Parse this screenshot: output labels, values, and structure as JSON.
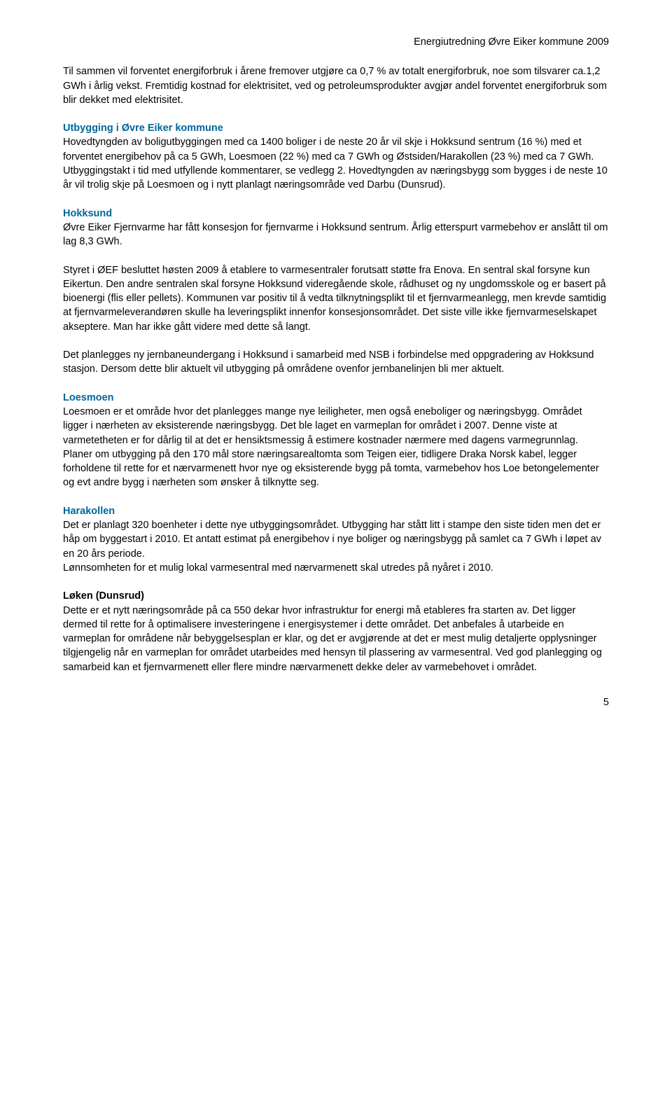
{
  "header": {
    "title": "Energiutredning Øvre Eiker kommune 2009"
  },
  "intro": {
    "p1": "Til sammen vil forventet energiforbruk i årene fremover utgjøre ca 0,7 % av totalt energiforbruk, noe som tilsvarer ca.1,2 GWh i årlig vekst.",
    "p2": "Fremtidig kostnad for elektrisitet, ved og petroleumsprodukter avgjør andel forventet energiforbruk som blir dekket med elektrisitet."
  },
  "utbygging": {
    "heading": "Utbygging i Øvre Eiker kommune",
    "p1": "Hovedtyngden av boligutbyggingen med ca 1400 boliger i de neste 20 år vil skje i Hokksund sentrum (16 %) med et forventet energibehov på ca 5 GWh, Loesmoen (22 %) med ca 7 GWh og Østsiden/Harakollen (23 %) med ca 7 GWh. Utbyggingstakt i tid med utfyllende kommentarer, se vedlegg 2. Hovedtyngden av næringsbygg som bygges i de neste 10 år vil trolig skje på Loesmoen og i nytt planlagt næringsområde ved Darbu (Dunsrud)."
  },
  "hokksund": {
    "heading": "Hokksund",
    "p1": "Øvre Eiker Fjernvarme har fått konsesjon for fjernvarme i Hokksund sentrum. Årlig etterspurt varmebehov er anslått til om lag 8,3 GWh.",
    "p2": "Styret i ØEF besluttet høsten 2009 å etablere to varmesentraler forutsatt støtte fra Enova. En sentral skal forsyne kun Eikertun. Den andre sentralen skal forsyne Hokksund videregående skole, rådhuset og ny ungdomsskole og er basert på bioenergi (flis eller pellets). Kommunen var positiv til å vedta tilknytningsplikt til et fjernvarmeanlegg, men krevde samtidig at fjernvarmeleverandøren skulle ha leveringsplikt innenfor konsesjonsområdet. Det siste ville ikke fjernvarmeselskapet akseptere. Man har ikke gått videre med dette så langt.",
    "p3": "Det planlegges ny jernbaneundergang i Hokksund i samarbeid med NSB i forbindelse med oppgradering av Hokksund stasjon. Dersom dette blir aktuelt vil utbygging på områdene ovenfor jernbanelinjen bli mer aktuelt."
  },
  "loesmoen": {
    "heading": "Loesmoen",
    "p1": "Loesmoen er et område hvor det planlegges mange nye leiligheter, men også eneboliger og næringsbygg. Området ligger i nærheten av eksisterende næringsbygg. Det ble laget en varmeplan for området i 2007. Denne viste at varmetetheten er for dårlig til at det er hensiktsmessig å estimere kostnader nærmere med dagens varmegrunnlag.",
    "p2": "Planer om utbygging på den 170 mål store næringsarealtomta som Teigen eier, tidligere Draka Norsk kabel, legger forholdene til rette for et nærvarmenett hvor nye og eksisterende bygg på tomta, varmebehov hos Loe betongelementer og evt andre bygg i nærheten som ønsker å tilknytte seg."
  },
  "harakollen": {
    "heading": "Harakollen",
    "p1": "Det er planlagt 320 boenheter i dette nye utbyggingsområdet. Utbygging har stått litt i stampe den siste tiden men det er håp om byggestart i 2010. Et antatt estimat på energibehov i nye boliger og næringsbygg på samlet ca 7 GWh i løpet av en 20 års periode.",
    "p2": "Lønnsomheten for et mulig lokal varmesentral med nærvarmenett skal utredes på nyåret i 2010."
  },
  "loken": {
    "heading": "Løken (Dunsrud)",
    "p1": "Dette er et nytt næringsområde på ca 550 dekar hvor infrastruktur for energi må etableres fra starten av. Det ligger dermed til rette for å optimalisere investeringene i energisystemer i dette området. Det anbefales å utarbeide en varmeplan for områdene når bebyggelsesplan er klar, og det er avgjørende at det er mest mulig detaljerte opplysninger tilgjengelig når en varmeplan for området utarbeides med hensyn til plassering av varmesentral. Ved god planlegging og samarbeid kan et fjernvarmenett eller flere mindre nærvarmenett dekke deler av varmebehovet i området."
  },
  "page": {
    "number": "5"
  }
}
